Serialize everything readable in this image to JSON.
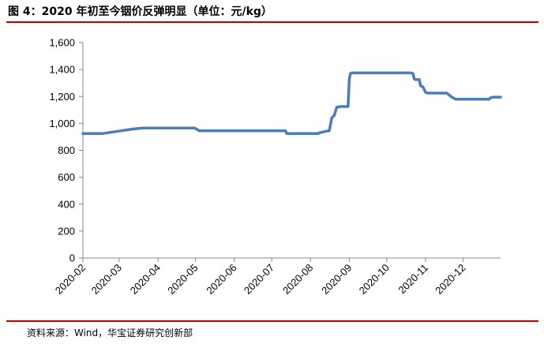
{
  "header": {
    "title": "图 4：2020 年初至今铟价反弹明显（单位：元/kg）"
  },
  "footer": {
    "source": "资料来源：Wind，华宝证券研究创新部"
  },
  "chart_data": {
    "type": "line",
    "title": "图 4：2020 年初至今铟价反弹明显（单位：元/kg）",
    "xlabel": "",
    "ylabel": "",
    "ylim": [
      0,
      1600
    ],
    "yticks": [
      0,
      200,
      400,
      600,
      800,
      1000,
      1200,
      1400,
      1600
    ],
    "ytick_labels": [
      "0",
      "200",
      "400",
      "600",
      "800",
      "1,000",
      "1,200",
      "1,400",
      "1,600"
    ],
    "x_ticks": [
      "2020-02",
      "2020-03",
      "2020-04",
      "2020-05",
      "2020-06",
      "2020-07",
      "2020-08",
      "2020-09",
      "2020-10",
      "2020-11",
      "2020-12"
    ],
    "x_range": [
      "2020-02-01",
      "2020-12-31"
    ],
    "grid": false,
    "legend": "none",
    "series_color": "#4a7ebb",
    "series": [
      {
        "x": [
          "2020-02-01",
          "2020-02-17",
          "2020-03-12",
          "2020-03-20",
          "2020-04-10",
          "2020-04-30",
          "2020-05-02",
          "2020-05-04",
          "2020-06-15",
          "2020-07-10",
          "2020-07-12",
          "2020-07-13",
          "2020-08-01",
          "2020-08-07",
          "2020-08-08",
          "2020-08-15",
          "2020-08-16",
          "2020-08-18",
          "2020-08-20",
          "2020-08-22",
          "2020-08-25",
          "2020-08-31",
          "2020-09-01",
          "2020-09-02",
          "2020-09-03",
          "2020-09-30",
          "2020-10-20",
          "2020-10-22",
          "2020-10-23",
          "2020-10-24",
          "2020-10-27",
          "2020-10-28",
          "2020-10-30",
          "2020-11-01",
          "2020-11-03",
          "2020-11-18",
          "2020-11-20",
          "2020-11-22",
          "2020-11-25",
          "2020-12-10",
          "2020-12-22",
          "2020-12-23",
          "2020-12-25",
          "2020-12-31"
        ],
        "values": [
          925,
          925,
          958,
          965,
          965,
          965,
          958,
          945,
          945,
          945,
          945,
          925,
          925,
          925,
          930,
          945,
          945,
          1040,
          1060,
          1120,
          1125,
          1125,
          1330,
          1370,
          1375,
          1375,
          1375,
          1370,
          1330,
          1325,
          1325,
          1280,
          1270,
          1230,
          1225,
          1225,
          1210,
          1195,
          1180,
          1180,
          1180,
          1190,
          1195,
          1195
        ]
      }
    ]
  }
}
